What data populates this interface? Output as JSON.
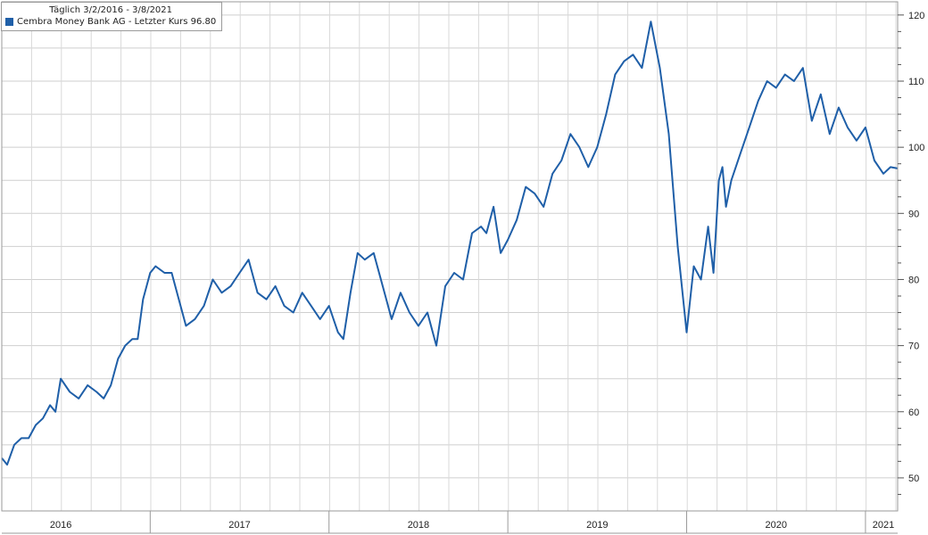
{
  "legend": {
    "range_label": "Täglich 3/2/2016 - 3/8/2021",
    "entry_label": "Cembra Money Bank AG - Letzter Kurs 96.80"
  },
  "chart_data": {
    "type": "line",
    "title": "",
    "xlabel": "",
    "ylabel": "",
    "x_range": [
      2016.17,
      2021.18
    ],
    "ylim": [
      45,
      122
    ],
    "y_ticks": [
      50,
      60,
      70,
      80,
      90,
      100,
      110,
      120
    ],
    "x_ticks": [
      {
        "label": "2016",
        "pos": 2016.5
      },
      {
        "label": "2017",
        "pos": 2017.5
      },
      {
        "label": "2018",
        "pos": 2018.5
      },
      {
        "label": "2019",
        "pos": 2019.5
      },
      {
        "label": "2020",
        "pos": 2020.5
      },
      {
        "label": "2021",
        "pos": 2021.1
      }
    ],
    "year_boundaries": [
      2017.0,
      2018.0,
      2019.0,
      2020.0,
      2021.0
    ],
    "grid": true,
    "legend_position": "top-left",
    "line_color": "#1f5fa8",
    "series": [
      {
        "name": "Cembra Money Bank AG",
        "x": [
          2016.17,
          2016.2,
          2016.24,
          2016.28,
          2016.32,
          2016.36,
          2016.4,
          2016.44,
          2016.47,
          2016.5,
          2016.55,
          2016.6,
          2016.65,
          2016.7,
          2016.74,
          2016.78,
          2016.82,
          2016.86,
          2016.9,
          2016.93,
          2016.96,
          2017.0,
          2017.03,
          2017.08,
          2017.12,
          2017.16,
          2017.2,
          2017.25,
          2017.3,
          2017.35,
          2017.4,
          2017.45,
          2017.5,
          2017.55,
          2017.6,
          2017.65,
          2017.7,
          2017.75,
          2017.8,
          2017.85,
          2017.9,
          2017.95,
          2018.0,
          2018.05,
          2018.08,
          2018.12,
          2018.16,
          2018.2,
          2018.25,
          2018.3,
          2018.35,
          2018.4,
          2018.45,
          2018.5,
          2018.55,
          2018.6,
          2018.65,
          2018.7,
          2018.75,
          2018.8,
          2018.85,
          2018.88,
          2018.92,
          2018.96,
          2019.0,
          2019.05,
          2019.1,
          2019.15,
          2019.2,
          2019.25,
          2019.3,
          2019.35,
          2019.4,
          2019.45,
          2019.5,
          2019.55,
          2019.6,
          2019.65,
          2019.7,
          2019.75,
          2019.8,
          2019.85,
          2019.9,
          2019.95,
          2020.0,
          2020.04,
          2020.08,
          2020.12,
          2020.15,
          2020.18,
          2020.2,
          2020.22,
          2020.25,
          2020.3,
          2020.35,
          2020.4,
          2020.45,
          2020.5,
          2020.55,
          2020.6,
          2020.65,
          2020.7,
          2020.75,
          2020.8,
          2020.85,
          2020.9,
          2020.95,
          2021.0,
          2021.05,
          2021.1,
          2021.14,
          2021.18
        ],
        "y": [
          53,
          52,
          55,
          56,
          56,
          58,
          59,
          61,
          60,
          65,
          63,
          62,
          64,
          63,
          62,
          64,
          68,
          70,
          71,
          71,
          77,
          81,
          82,
          81,
          81,
          77,
          73,
          74,
          76,
          80,
          78,
          79,
          81,
          83,
          78,
          77,
          79,
          76,
          75,
          78,
          76,
          74,
          76,
          72,
          71,
          78,
          84,
          83,
          84,
          79,
          74,
          78,
          75,
          73,
          75,
          70,
          79,
          81,
          80,
          87,
          88,
          87,
          91,
          84,
          86,
          89,
          94,
          93,
          91,
          96,
          98,
          102,
          100,
          97,
          100,
          105,
          111,
          113,
          114,
          112,
          119,
          112,
          102,
          85,
          72,
          82,
          80,
          88,
          81,
          95,
          97,
          91,
          95,
          99,
          103,
          107,
          110,
          109,
          111,
          110,
          112,
          104,
          108,
          102,
          106,
          103,
          101,
          103,
          98,
          96,
          97,
          96.8
        ]
      }
    ]
  }
}
